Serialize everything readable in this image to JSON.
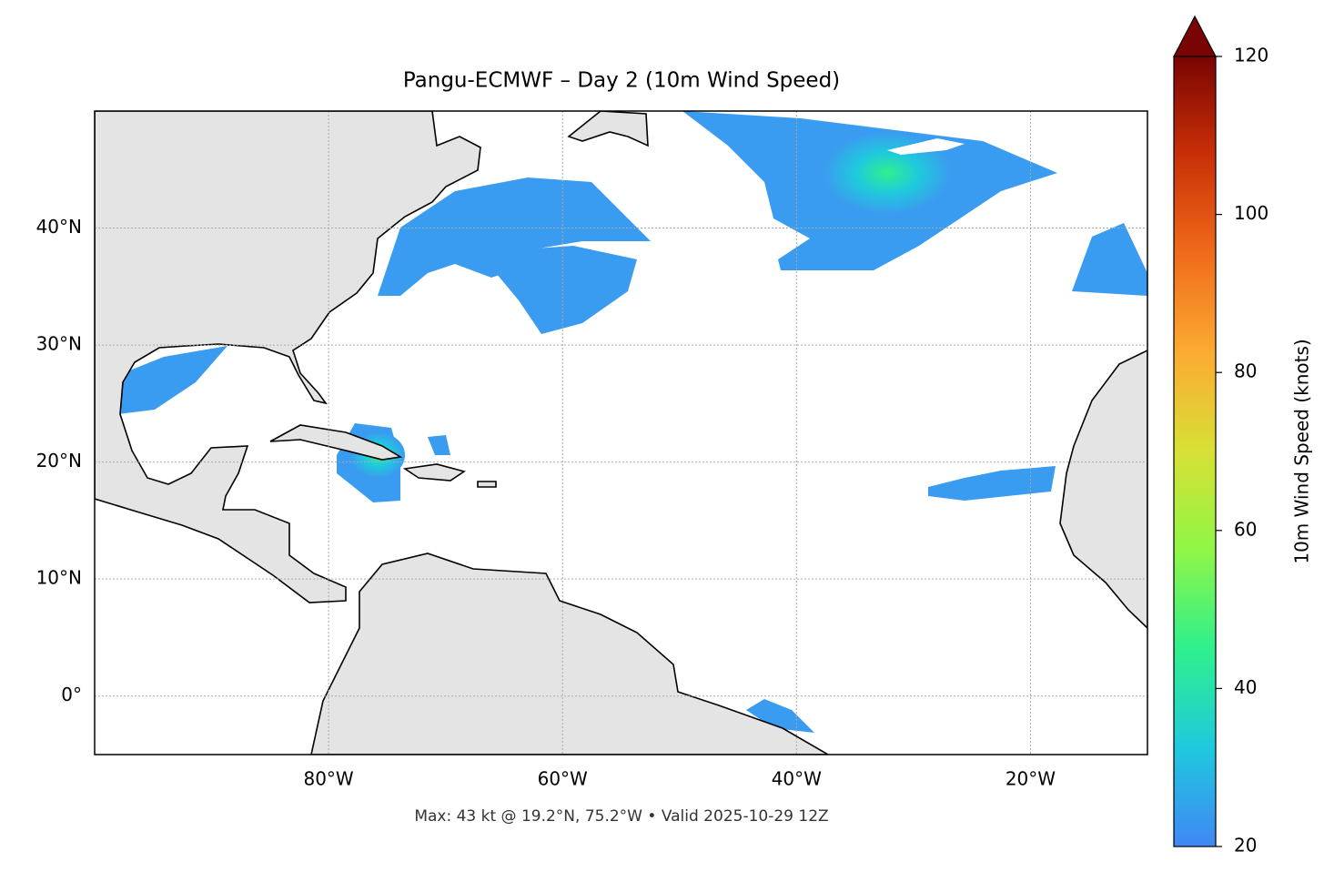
{
  "chart_data": {
    "type": "map",
    "title": "Pangu-ECMWF – Day 2 (10m Wind Speed)",
    "xlim": [
      -100,
      -10
    ],
    "ylim": [
      -5,
      50
    ],
    "xticks": [
      {
        "value": -80,
        "label": "80°W"
      },
      {
        "value": -60,
        "label": "60°W"
      },
      {
        "value": -40,
        "label": "40°W"
      },
      {
        "value": -20,
        "label": "20°W"
      }
    ],
    "yticks": [
      {
        "value": 0,
        "label": "0°"
      },
      {
        "value": 10,
        "label": "10°N"
      },
      {
        "value": 20,
        "label": "20°N"
      },
      {
        "value": 30,
        "label": "30°N"
      },
      {
        "value": 40,
        "label": "40°N"
      }
    ],
    "grid": true,
    "footnote": "Max: 43 kt @ 19.2°N, 75.2°W • Valid 2025-10-29 12Z",
    "colorbar": {
      "label": "10m Wind Speed (knots)",
      "lim": [
        20,
        120
      ],
      "ticks": [
        20,
        40,
        60,
        80,
        100,
        120
      ],
      "colors": [
        "#3f87f5",
        "#1fc9dd",
        "#2ef08d",
        "#8ff646",
        "#d8e035",
        "#fcab32",
        "#f06b1a",
        "#c93008",
        "#7a0403"
      ],
      "extend": "max"
    }
  }
}
